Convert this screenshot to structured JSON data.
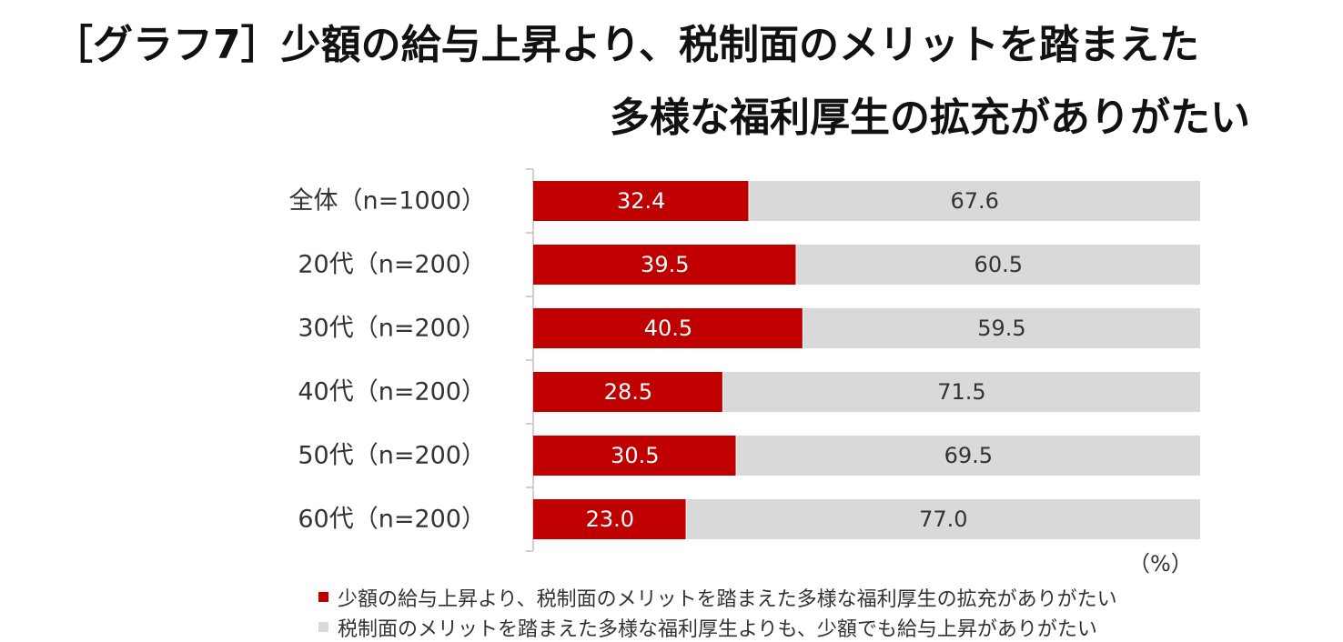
{
  "title": {
    "line1": "［グラフ7］少額の給与上昇より、税制面のメリットを踏まえた",
    "line2": "多様な福利厚生の拡充がありがたい"
  },
  "unit": "（%）",
  "colors": {
    "series1": "#c00000",
    "series2": "#d9d9d9",
    "series1_text": "#ffffff",
    "series2_text": "#333333",
    "axis": "#d0d0d0"
  },
  "chart_data": {
    "type": "bar",
    "orientation": "horizontal",
    "stacked": true,
    "title": "［グラフ7］少額の給与上昇より、税制面のメリットを踏まえた多様な福利厚生の拡充がありがたい",
    "categories": [
      "全体（n=1000）",
      "20代（n=200）",
      "30代（n=200）",
      "40代（n=200）",
      "50代（n=200）",
      "60代（n=200）"
    ],
    "series": [
      {
        "name": "少額の給与上昇より、税制面のメリットを踏まえた多様な福利厚生の拡充がありがたい",
        "values": [
          32.4,
          39.5,
          40.5,
          28.5,
          30.5,
          23.0
        ],
        "labels": [
          "32.4",
          "39.5",
          "40.5",
          "28.5",
          "30.5",
          "23.0"
        ]
      },
      {
        "name": "税制面のメリットを踏まえた多様な福利厚生よりも、少額でも給与上昇がありがたい",
        "values": [
          67.6,
          60.5,
          59.5,
          71.5,
          69.5,
          77.0
        ],
        "labels": [
          "67.6",
          "60.5",
          "59.5",
          "71.5",
          "69.5",
          "77.0"
        ]
      }
    ],
    "xlim": [
      0,
      100
    ],
    "xlabel": "",
    "ylabel": "",
    "grid": false,
    "legend": "bottom"
  }
}
